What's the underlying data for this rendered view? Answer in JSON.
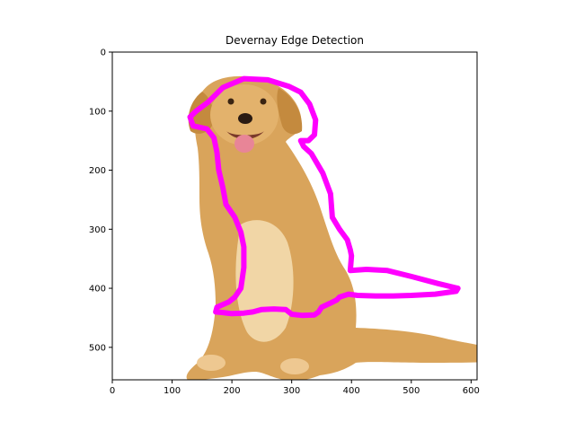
{
  "chart_data": {
    "type": "image",
    "title": "Devernay Edge Detection",
    "xlim": [
      0,
      610
    ],
    "ylim": [
      555,
      0
    ],
    "x_ticks": [
      0,
      100,
      200,
      300,
      400,
      500,
      600
    ],
    "y_ticks": [
      0,
      100,
      200,
      300,
      400,
      500
    ],
    "image": {
      "subject": "golden retriever sitting",
      "edge_color": "#ff00ff"
    },
    "edge_contour": [
      [
        140,
        100
      ],
      [
        160,
        85
      ],
      [
        185,
        60
      ],
      [
        220,
        45
      ],
      [
        260,
        47
      ],
      [
        295,
        58
      ],
      [
        315,
        68
      ],
      [
        330,
        88
      ],
      [
        340,
        115
      ],
      [
        338,
        140
      ],
      [
        328,
        150
      ],
      [
        315,
        150
      ],
      [
        320,
        160
      ],
      [
        333,
        172
      ],
      [
        352,
        205
      ],
      [
        365,
        240
      ],
      [
        368,
        280
      ],
      [
        380,
        300
      ],
      [
        393,
        318
      ],
      [
        398,
        335
      ],
      [
        400,
        345
      ],
      [
        398,
        370
      ],
      [
        425,
        368
      ],
      [
        460,
        370
      ],
      [
        500,
        380
      ],
      [
        545,
        392
      ],
      [
        578,
        400
      ],
      [
        575,
        405
      ],
      [
        540,
        410
      ],
      [
        500,
        412
      ],
      [
        470,
        413
      ],
      [
        440,
        413
      ],
      [
        410,
        412
      ],
      [
        395,
        410
      ],
      [
        380,
        415
      ],
      [
        375,
        420
      ],
      [
        365,
        425
      ],
      [
        350,
        432
      ],
      [
        345,
        440
      ],
      [
        338,
        445
      ],
      [
        318,
        446
      ],
      [
        300,
        444
      ],
      [
        290,
        436
      ],
      [
        270,
        435
      ],
      [
        250,
        436
      ],
      [
        235,
        440
      ],
      [
        220,
        442
      ],
      [
        200,
        443
      ],
      [
        183,
        441
      ],
      [
        173,
        440
      ],
      [
        175,
        432
      ],
      [
        195,
        423
      ],
      [
        205,
        415
      ],
      [
        215,
        400
      ],
      [
        220,
        365
      ],
      [
        220,
        330
      ],
      [
        215,
        305
      ],
      [
        205,
        280
      ],
      [
        190,
        258
      ],
      [
        185,
        230
      ],
      [
        178,
        200
      ],
      [
        175,
        170
      ],
      [
        170,
        145
      ],
      [
        158,
        130
      ],
      [
        135,
        125
      ],
      [
        130,
        110
      ]
    ]
  }
}
